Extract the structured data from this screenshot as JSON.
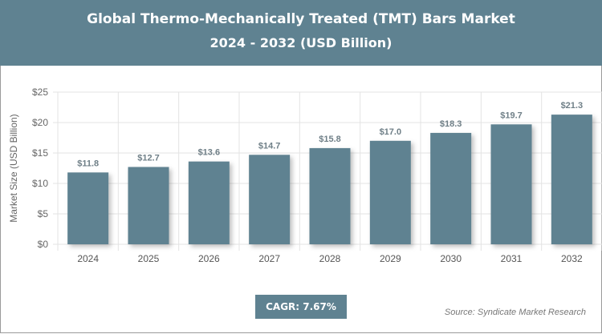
{
  "header": {
    "title": "Global Thermo-Mechanically Treated (TMT) Bars Market",
    "subtitle": "2024 - 2032 (USD Billion)"
  },
  "chart_data": {
    "type": "bar",
    "title": "Global Thermo-Mechanically Treated (TMT) Bars Market",
    "subtitle": "2024 - 2032 (USD Billion)",
    "categories": [
      "2024",
      "2025",
      "2026",
      "2027",
      "2028",
      "2029",
      "2030",
      "2031",
      "2032"
    ],
    "values": [
      11.8,
      12.7,
      13.6,
      14.7,
      15.8,
      17.0,
      18.3,
      19.7,
      21.3
    ],
    "data_labels": [
      "$11.8",
      "$12.7",
      "$13.6",
      "$14.7",
      "$15.8",
      "$17.0",
      "$18.3",
      "$19.7",
      "$21.3"
    ],
    "xlabel": "",
    "ylabel": "Market Size (USD Billion)",
    "ylim": [
      0,
      25
    ],
    "yticks": [
      0,
      5,
      10,
      15,
      20,
      25
    ],
    "ytick_labels": [
      "$0",
      "$5",
      "$10",
      "$15",
      "$20",
      "$25"
    ],
    "grid": true,
    "bar_color": "#5f8291"
  },
  "footer": {
    "cagr": "CAGR: 7.67%",
    "source": "Source: Syndicate Market Research"
  }
}
